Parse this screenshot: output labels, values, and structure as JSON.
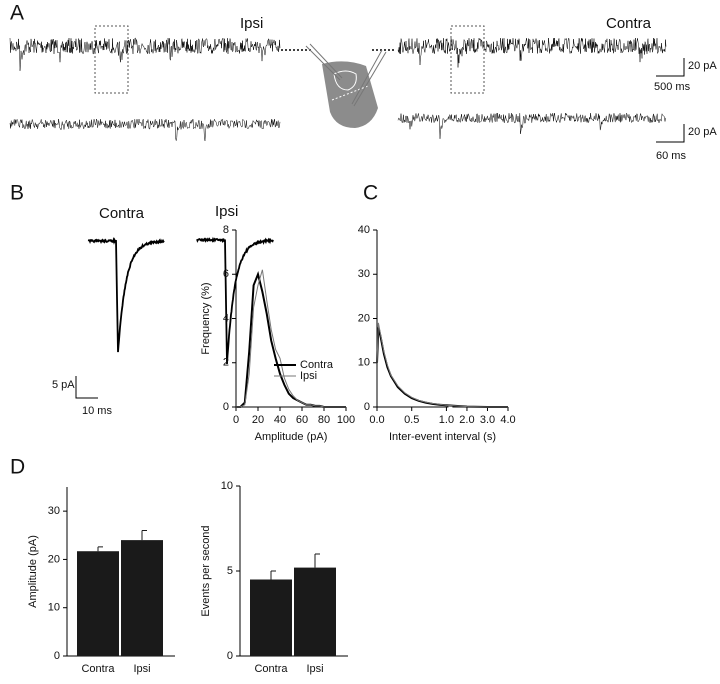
{
  "panels": {
    "a": "A",
    "b": "B",
    "c": "C",
    "d": "D"
  },
  "panel_a": {
    "left_label": "Ipsi",
    "right_label": "Contra",
    "scale_top_y": "20 pA",
    "scale_top_x": "500 ms",
    "scale_bottom_y": "20 pA",
    "scale_bottom_x": "60 ms"
  },
  "panel_b": {
    "left_label": "Contra",
    "right_label": "Ipsi",
    "scale_y": "5 pA",
    "scale_x": "10 ms"
  },
  "chart_data": [
    {
      "type": "line",
      "xlabel": "Amplitude (pA)",
      "ylabel": "Frequency (%)",
      "x": [
        0,
        4,
        8,
        12,
        16,
        20,
        24,
        28,
        32,
        36,
        40,
        44,
        48,
        52,
        56,
        60,
        64,
        68,
        72,
        76,
        80,
        84,
        88,
        92,
        96,
        100
      ],
      "series": [
        {
          "name": "Contra",
          "color": "#000000",
          "values": [
            0,
            0,
            0.2,
            2.5,
            5.5,
            6.0,
            5.2,
            4.2,
            3.0,
            2.2,
            1.5,
            1.0,
            0.6,
            0.4,
            0.3,
            0.2,
            0.1,
            0.1,
            0.05,
            0.05,
            0,
            0,
            0,
            0,
            0,
            0
          ]
        },
        {
          "name": "Ipsi",
          "color": "#777777",
          "values": [
            0,
            0,
            0.1,
            1.5,
            4.5,
            5.5,
            6.2,
            4.8,
            3.5,
            2.6,
            2.2,
            1.3,
            0.8,
            0.5,
            0.3,
            0.2,
            0.1,
            0.1,
            0.05,
            0.05,
            0,
            0,
            0,
            0,
            0,
            0
          ]
        }
      ],
      "xlim": [
        0,
        100
      ],
      "xticks": [
        0,
        20,
        40,
        60,
        80,
        100
      ],
      "ylim": [
        0,
        8
      ],
      "yticks": [
        0,
        2,
        4,
        6,
        8
      ],
      "legend": "lower right"
    },
    {
      "type": "line",
      "xlabel": "Inter-event interval (s)",
      "x": [
        0,
        0.02,
        0.05,
        0.1,
        0.15,
        0.2,
        0.3,
        0.4,
        0.5,
        0.6,
        0.7,
        0.8,
        0.9,
        1.0,
        2.0,
        3.0,
        4.0
      ],
      "series": [
        {
          "name": "Contra",
          "color": "#000000",
          "values": [
            10,
            18,
            16,
            12,
            9,
            7,
            4.5,
            3,
            2,
            1.4,
            1,
            0.7,
            0.5,
            0.4,
            0.1,
            0,
            0
          ]
        },
        {
          "name": "Ipsi",
          "color": "#777777",
          "values": [
            10,
            19,
            16.5,
            12.5,
            9.5,
            7.2,
            4.8,
            3.2,
            2.2,
            1.5,
            1.1,
            0.8,
            0.6,
            0.4,
            0.1,
            0,
            0
          ]
        }
      ],
      "xlim": [
        0,
        4
      ],
      "xbreak": 1.0,
      "xticks": [
        {
          "value": 0,
          "label": "0.0"
        },
        0.5,
        {
          "value": 1,
          "label": "1.0"
        },
        {
          "value": 2,
          "label": "2.0"
        },
        {
          "value": 3,
          "label": "3.0"
        },
        {
          "value": 4,
          "label": "4.0"
        }
      ],
      "ylim": [
        0,
        40
      ],
      "yticks": [
        0,
        10,
        20,
        30,
        40
      ]
    },
    {
      "type": "bar",
      "ylabel": "Amplitude (pA)",
      "categories": [
        "Contra",
        "Ipsi"
      ],
      "values": [
        21.7,
        24.0
      ],
      "errors": [
        0.9,
        2.0
      ],
      "color": "#1a1a1a",
      "ylim": [
        0,
        35
      ],
      "yticks": [
        0,
        10,
        20,
        30
      ]
    },
    {
      "type": "bar",
      "ylabel": "Events per second",
      "categories": [
        "Contra",
        "Ipsi"
      ],
      "values": [
        4.5,
        5.2
      ],
      "errors": [
        0.5,
        0.8
      ],
      "color": "#1a1a1a",
      "ylim": [
        0,
        10
      ],
      "yticks": [
        0,
        5,
        10
      ]
    }
  ]
}
